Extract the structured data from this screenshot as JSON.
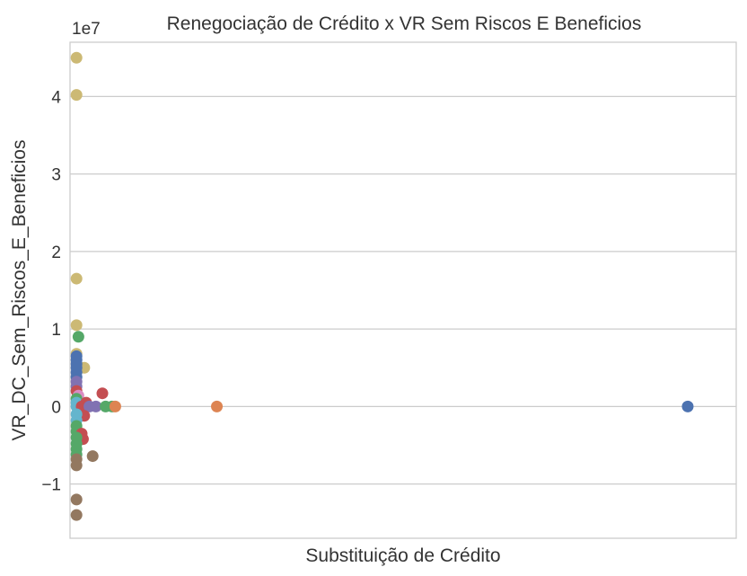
{
  "chart_data": {
    "type": "scatter",
    "title": "Renegociação de Crédito x VR Sem Riscos E Beneficios",
    "xlabel": "Substituição de Crédito",
    "ylabel": "VR_DC_Sem_Riscos_E_Beneficios",
    "y_offset_label": "1e7",
    "y_scale_multiplier": 10000000,
    "ylim": [
      -1.7,
      4.7
    ],
    "xlim": [
      -0.01,
      1.02
    ],
    "yticks": [
      -1,
      0,
      1,
      2,
      3,
      4
    ],
    "ytick_labels": [
      "−1",
      "0",
      "1",
      "2",
      "3",
      "4"
    ],
    "grid": true,
    "legend": "none",
    "points": [
      {
        "x": 0.0,
        "y": 4.5,
        "color": "#ccb974"
      },
      {
        "x": 0.0,
        "y": 4.02,
        "color": "#ccb974"
      },
      {
        "x": 0.0,
        "y": 1.65,
        "color": "#ccb974"
      },
      {
        "x": 0.0,
        "y": 1.05,
        "color": "#ccb974"
      },
      {
        "x": 0.003,
        "y": 0.9,
        "color": "#55a868"
      },
      {
        "x": 0.0,
        "y": 0.68,
        "color": "#ccb974"
      },
      {
        "x": 0.012,
        "y": 0.5,
        "color": "#ccb974"
      },
      {
        "x": 0.0,
        "y": 0.65,
        "color": "#4c72b0"
      },
      {
        "x": 0.0,
        "y": 0.6,
        "color": "#4c72b0"
      },
      {
        "x": 0.0,
        "y": 0.55,
        "color": "#4c72b0"
      },
      {
        "x": 0.0,
        "y": 0.5,
        "color": "#4c72b0"
      },
      {
        "x": 0.0,
        "y": 0.44,
        "color": "#4c72b0"
      },
      {
        "x": 0.0,
        "y": 0.38,
        "color": "#4c72b0"
      },
      {
        "x": 0.0,
        "y": 0.32,
        "color": "#8172b2"
      },
      {
        "x": 0.0,
        "y": 0.26,
        "color": "#8172b2"
      },
      {
        "x": 0.0,
        "y": 0.2,
        "color": "#c44e52"
      },
      {
        "x": 0.003,
        "y": 0.14,
        "color": "#da8bc3"
      },
      {
        "x": 0.0,
        "y": 0.1,
        "color": "#55a868"
      },
      {
        "x": 0.0,
        "y": 0.05,
        "color": "#64b5cd"
      },
      {
        "x": 0.0,
        "y": 0.0,
        "color": "#64b5cd"
      },
      {
        "x": 0.008,
        "y": 0.0,
        "color": "#c44e52"
      },
      {
        "x": 0.015,
        "y": 0.05,
        "color": "#c44e52"
      },
      {
        "x": 0.02,
        "y": 0.0,
        "color": "#8172b2"
      },
      {
        "x": 0.03,
        "y": 0.0,
        "color": "#8172b2"
      },
      {
        "x": 0.04,
        "y": 0.17,
        "color": "#c44e52"
      },
      {
        "x": 0.045,
        "y": 0.0,
        "color": "#55a868"
      },
      {
        "x": 0.055,
        "y": 0.0,
        "color": "#55a868"
      },
      {
        "x": 0.06,
        "y": 0.0,
        "color": "#dd8452"
      },
      {
        "x": 0.217,
        "y": 0.0,
        "color": "#dd8452"
      },
      {
        "x": 0.945,
        "y": 0.0,
        "color": "#4c72b0"
      },
      {
        "x": 0.012,
        "y": -0.12,
        "color": "#c44e52"
      },
      {
        "x": 0.0,
        "y": -0.1,
        "color": "#64b5cd"
      },
      {
        "x": 0.0,
        "y": -0.18,
        "color": "#64b5cd"
      },
      {
        "x": 0.0,
        "y": -0.25,
        "color": "#55a868"
      },
      {
        "x": 0.0,
        "y": -0.32,
        "color": "#55a868"
      },
      {
        "x": 0.008,
        "y": -0.35,
        "color": "#c44e52"
      },
      {
        "x": 0.01,
        "y": -0.42,
        "color": "#c44e52"
      },
      {
        "x": 0.0,
        "y": -0.4,
        "color": "#55a868"
      },
      {
        "x": 0.0,
        "y": -0.48,
        "color": "#55a868"
      },
      {
        "x": 0.0,
        "y": -0.55,
        "color": "#55a868"
      },
      {
        "x": 0.0,
        "y": -0.62,
        "color": "#55a868"
      },
      {
        "x": 0.025,
        "y": -0.64,
        "color": "#937860"
      },
      {
        "x": 0.0,
        "y": -0.68,
        "color": "#937860"
      },
      {
        "x": 0.0,
        "y": -0.76,
        "color": "#937860"
      },
      {
        "x": 0.0,
        "y": -1.2,
        "color": "#937860"
      },
      {
        "x": 0.0,
        "y": -1.4,
        "color": "#937860"
      }
    ]
  }
}
